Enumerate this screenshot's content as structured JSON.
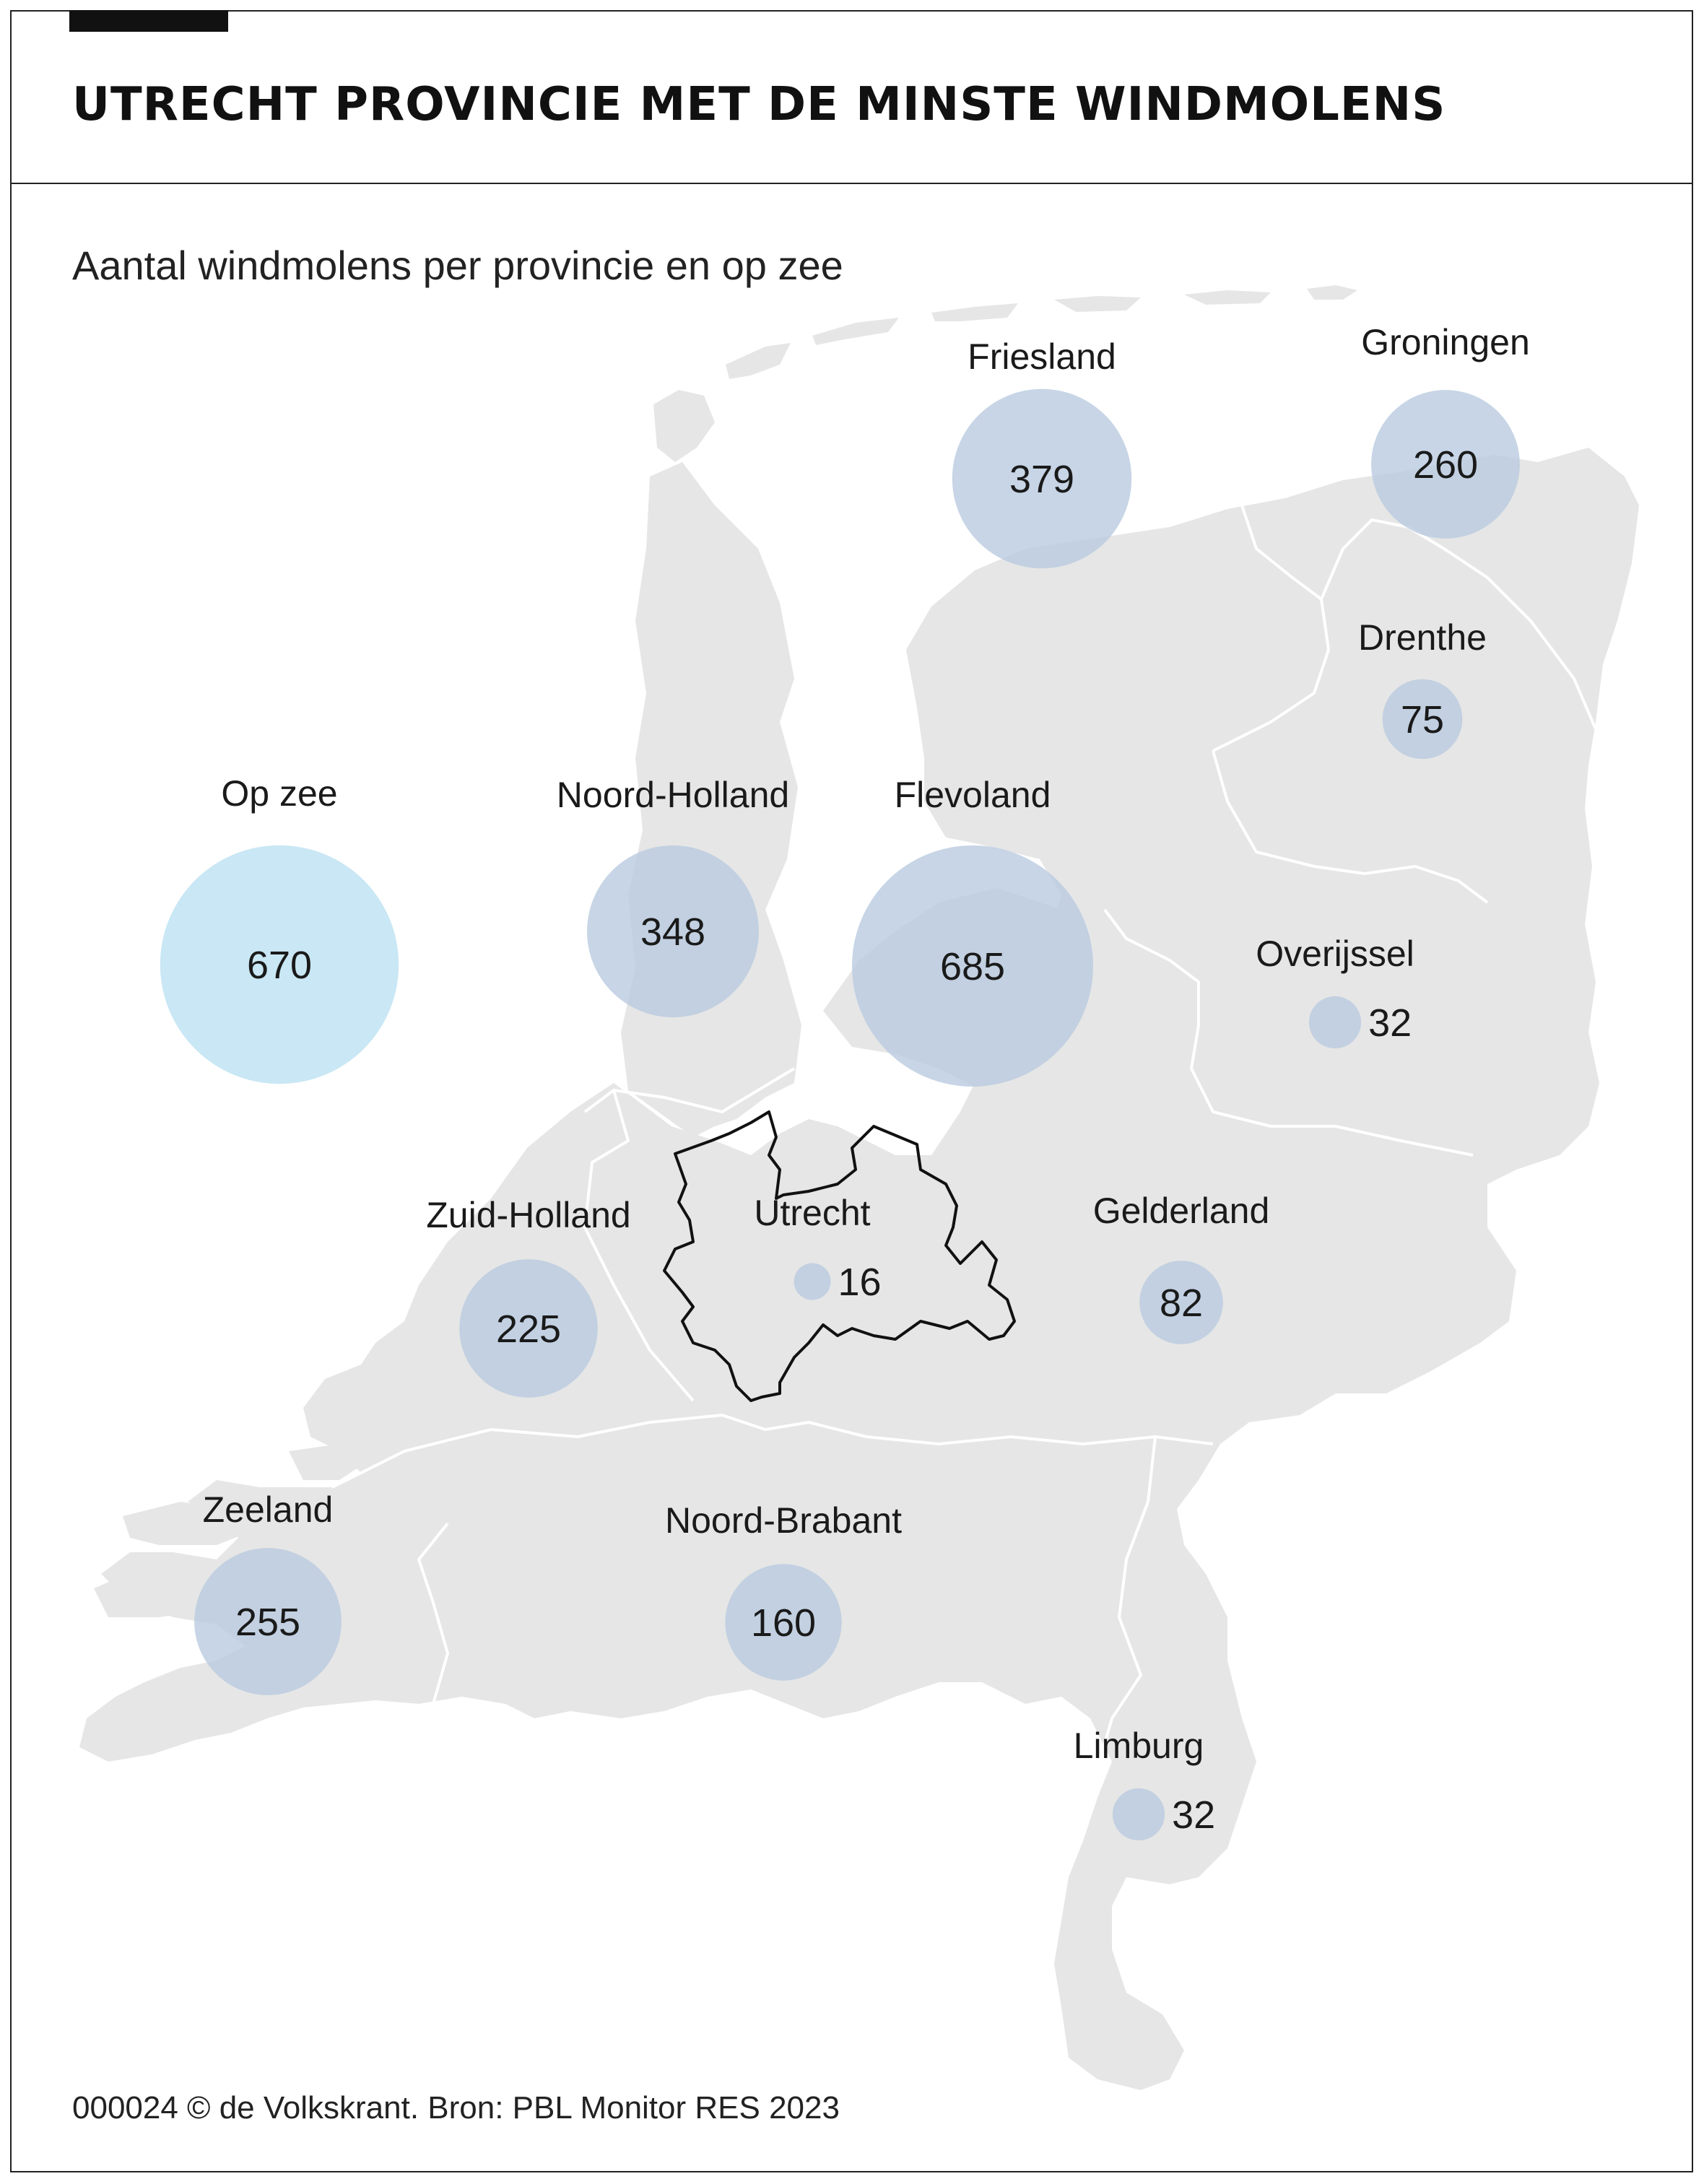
{
  "header": {
    "title": "UTRECHT PROVINCIE MET DE MINSTE WINDMOLENS",
    "subtitle": "Aantal windmolens per provincie en op zee"
  },
  "footer": {
    "source": "000024 © de Volkskrant. Bron: PBL Monitor RES 2023"
  },
  "colors": {
    "land": "#e6e6e6",
    "border": "#ffffff",
    "bubble_onshore": "#b9cbe0",
    "bubble_offshore": "#bfe3f2",
    "highlight_outline": "#111111"
  },
  "map": {
    "highlight": "Utrecht",
    "bubbles": [
      {
        "name": "Friesland",
        "value": 379,
        "value_label": "379",
        "type": "onshore"
      },
      {
        "name": "Groningen",
        "value": 260,
        "value_label": "260",
        "type": "onshore"
      },
      {
        "name": "Drenthe",
        "value": 75,
        "value_label": "75",
        "type": "onshore"
      },
      {
        "name": "Op zee",
        "value": 670,
        "value_label": "670",
        "type": "offshore"
      },
      {
        "name": "Noord-Holland",
        "value": 348,
        "value_label": "348",
        "type": "onshore"
      },
      {
        "name": "Flevoland",
        "value": 685,
        "value_label": "685",
        "type": "onshore"
      },
      {
        "name": "Overijssel",
        "value": 32,
        "value_label": "32",
        "type": "onshore"
      },
      {
        "name": "Zuid-Holland",
        "value": 225,
        "value_label": "225",
        "type": "onshore"
      },
      {
        "name": "Utrecht",
        "value": 16,
        "value_label": "16",
        "type": "onshore"
      },
      {
        "name": "Gelderland",
        "value": 82,
        "value_label": "82",
        "type": "onshore"
      },
      {
        "name": "Zeeland",
        "value": 255,
        "value_label": "255",
        "type": "onshore"
      },
      {
        "name": "Noord-Brabant",
        "value": 160,
        "value_label": "160",
        "type": "onshore"
      },
      {
        "name": "Limburg",
        "value": 32,
        "value_label": "32",
        "type": "onshore"
      }
    ]
  }
}
